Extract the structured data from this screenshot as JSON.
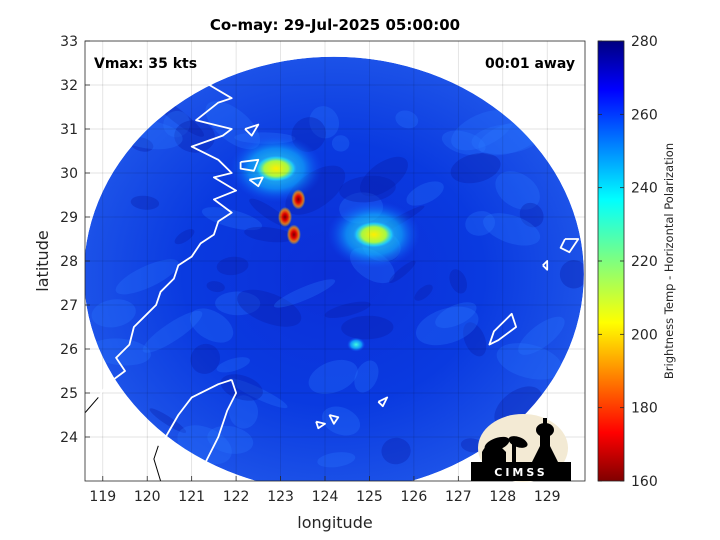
{
  "title": "Co-may: 29-Jul-2025 05:00:00",
  "annotation_left": "Vmax: 35 kts",
  "annotation_right": "00:01 away",
  "logo_text": "CIMSS",
  "icon": "cimss-logo-icon",
  "chart_data": {
    "type": "heatmap",
    "xlabel": "longitude",
    "ylabel": "latitude",
    "xlim": [
      118.6,
      129.85
    ],
    "ylim": [
      23.0,
      33.0
    ],
    "x_ticks": [
      "119",
      "120",
      "121",
      "122",
      "123",
      "124",
      "125",
      "126",
      "127",
      "128",
      "129"
    ],
    "y_ticks": [
      "24",
      "25",
      "26",
      "27",
      "28",
      "29",
      "30",
      "31",
      "32",
      "33"
    ],
    "colorbar": {
      "label": "Brightness Temp - Horizontal Polarization",
      "range": [
        160,
        280
      ],
      "ticks": [
        "160",
        "180",
        "200",
        "220",
        "240",
        "260",
        "280"
      ],
      "colormap": "jet"
    },
    "swath": {
      "center_lon": 124.2,
      "center_lat": 27.7,
      "edge_lon_west": 118.6,
      "edge_lon_east": 129.85
    },
    "cold_features": [
      {
        "lon": 122.9,
        "lat": 30.1,
        "bt": 198
      },
      {
        "lon": 123.1,
        "lat": 29.0,
        "bt": 170
      },
      {
        "lon": 123.4,
        "lat": 29.4,
        "bt": 178
      },
      {
        "lon": 123.3,
        "lat": 28.6,
        "bt": 180
      },
      {
        "lon": 125.1,
        "lat": 28.6,
        "bt": 196
      },
      {
        "lon": 124.7,
        "lat": 26.1,
        "bt": 210
      }
    ],
    "grid": true
  }
}
